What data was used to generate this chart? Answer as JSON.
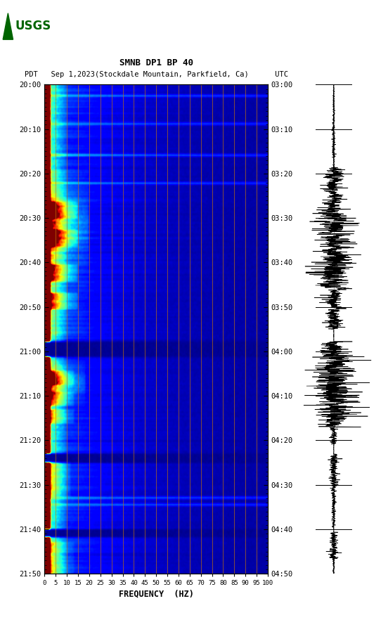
{
  "title_line1": "SMNB DP1 BP 40",
  "title_line2": "PDT   Sep 1,2023(Stockdale Mountain, Parkfield, Ca)      UTC",
  "xlabel": "FREQUENCY  (HZ)",
  "left_time_labels": [
    "20:00",
    "20:10",
    "20:20",
    "20:30",
    "20:40",
    "20:50",
    "21:00",
    "21:10",
    "21:20",
    "21:30",
    "21:40",
    "21:50"
  ],
  "right_time_labels": [
    "03:00",
    "03:10",
    "03:20",
    "03:30",
    "03:40",
    "03:50",
    "04:00",
    "04:10",
    "04:20",
    "04:30",
    "04:40",
    "04:50"
  ],
  "freq_ticks": [
    0,
    5,
    10,
    15,
    20,
    25,
    30,
    35,
    40,
    45,
    50,
    55,
    60,
    65,
    70,
    75,
    80,
    85,
    90,
    95,
    100
  ],
  "background_color": "#ffffff",
  "fig_width": 5.52,
  "fig_height": 8.92
}
